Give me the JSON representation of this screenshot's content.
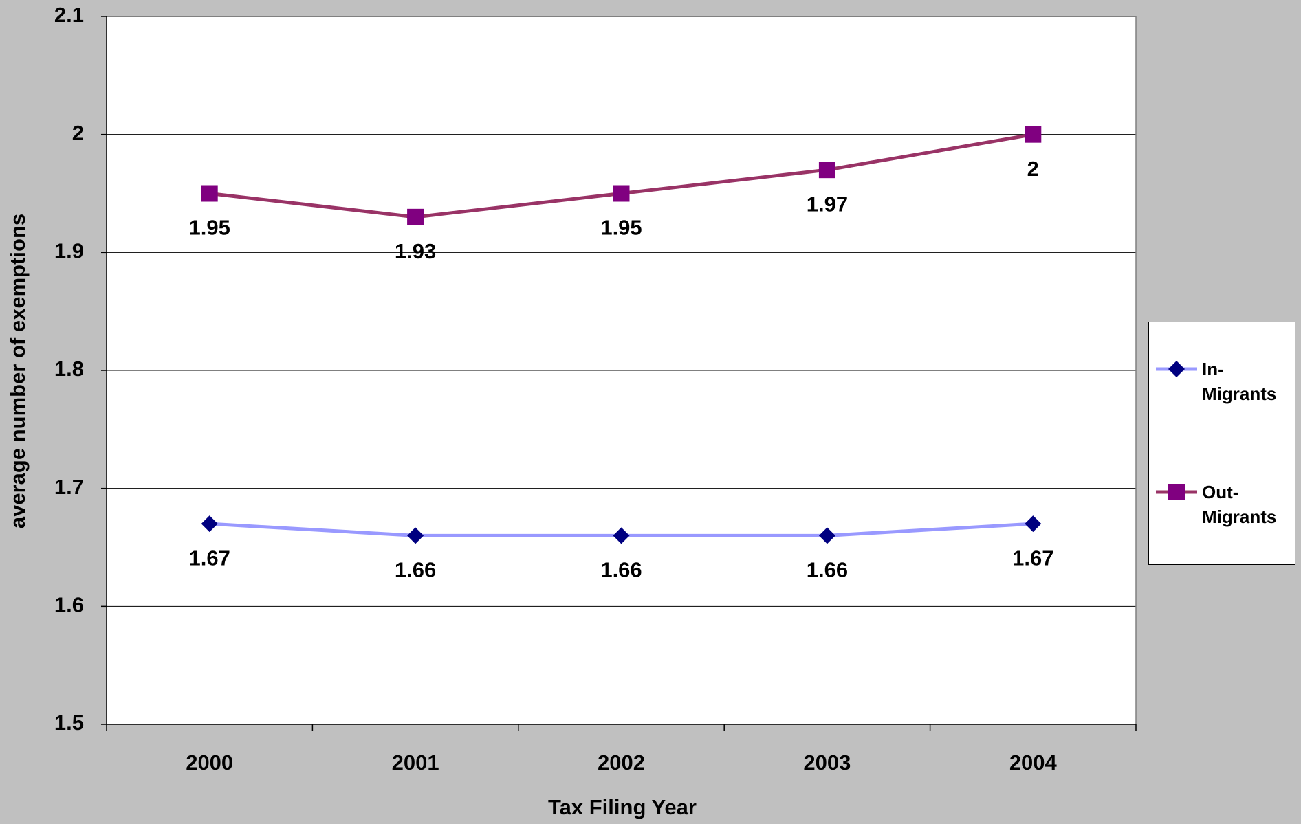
{
  "chart_data": {
    "type": "line",
    "x_label": "Tax Filing Year",
    "y_label": "average number of exemptions",
    "categories": [
      "2000",
      "2001",
      "2002",
      "2003",
      "2004"
    ],
    "series": [
      {
        "name": "In-Migrants",
        "color": "#9999ff",
        "marker_color": "#000080",
        "marker": "diamond",
        "values": [
          1.67,
          1.66,
          1.66,
          1.66,
          1.67
        ]
      },
      {
        "name": "Out-Migrants",
        "color": "#993366",
        "marker_color": "#800080",
        "marker": "square",
        "values": [
          1.95,
          1.93,
          1.95,
          1.97,
          2
        ]
      }
    ],
    "ylim": [
      1.5,
      2.1
    ],
    "yticks": [
      1.5,
      1.6,
      1.7,
      1.8,
      1.9,
      2,
      2.1
    ],
    "grid": true,
    "legend": "right"
  }
}
